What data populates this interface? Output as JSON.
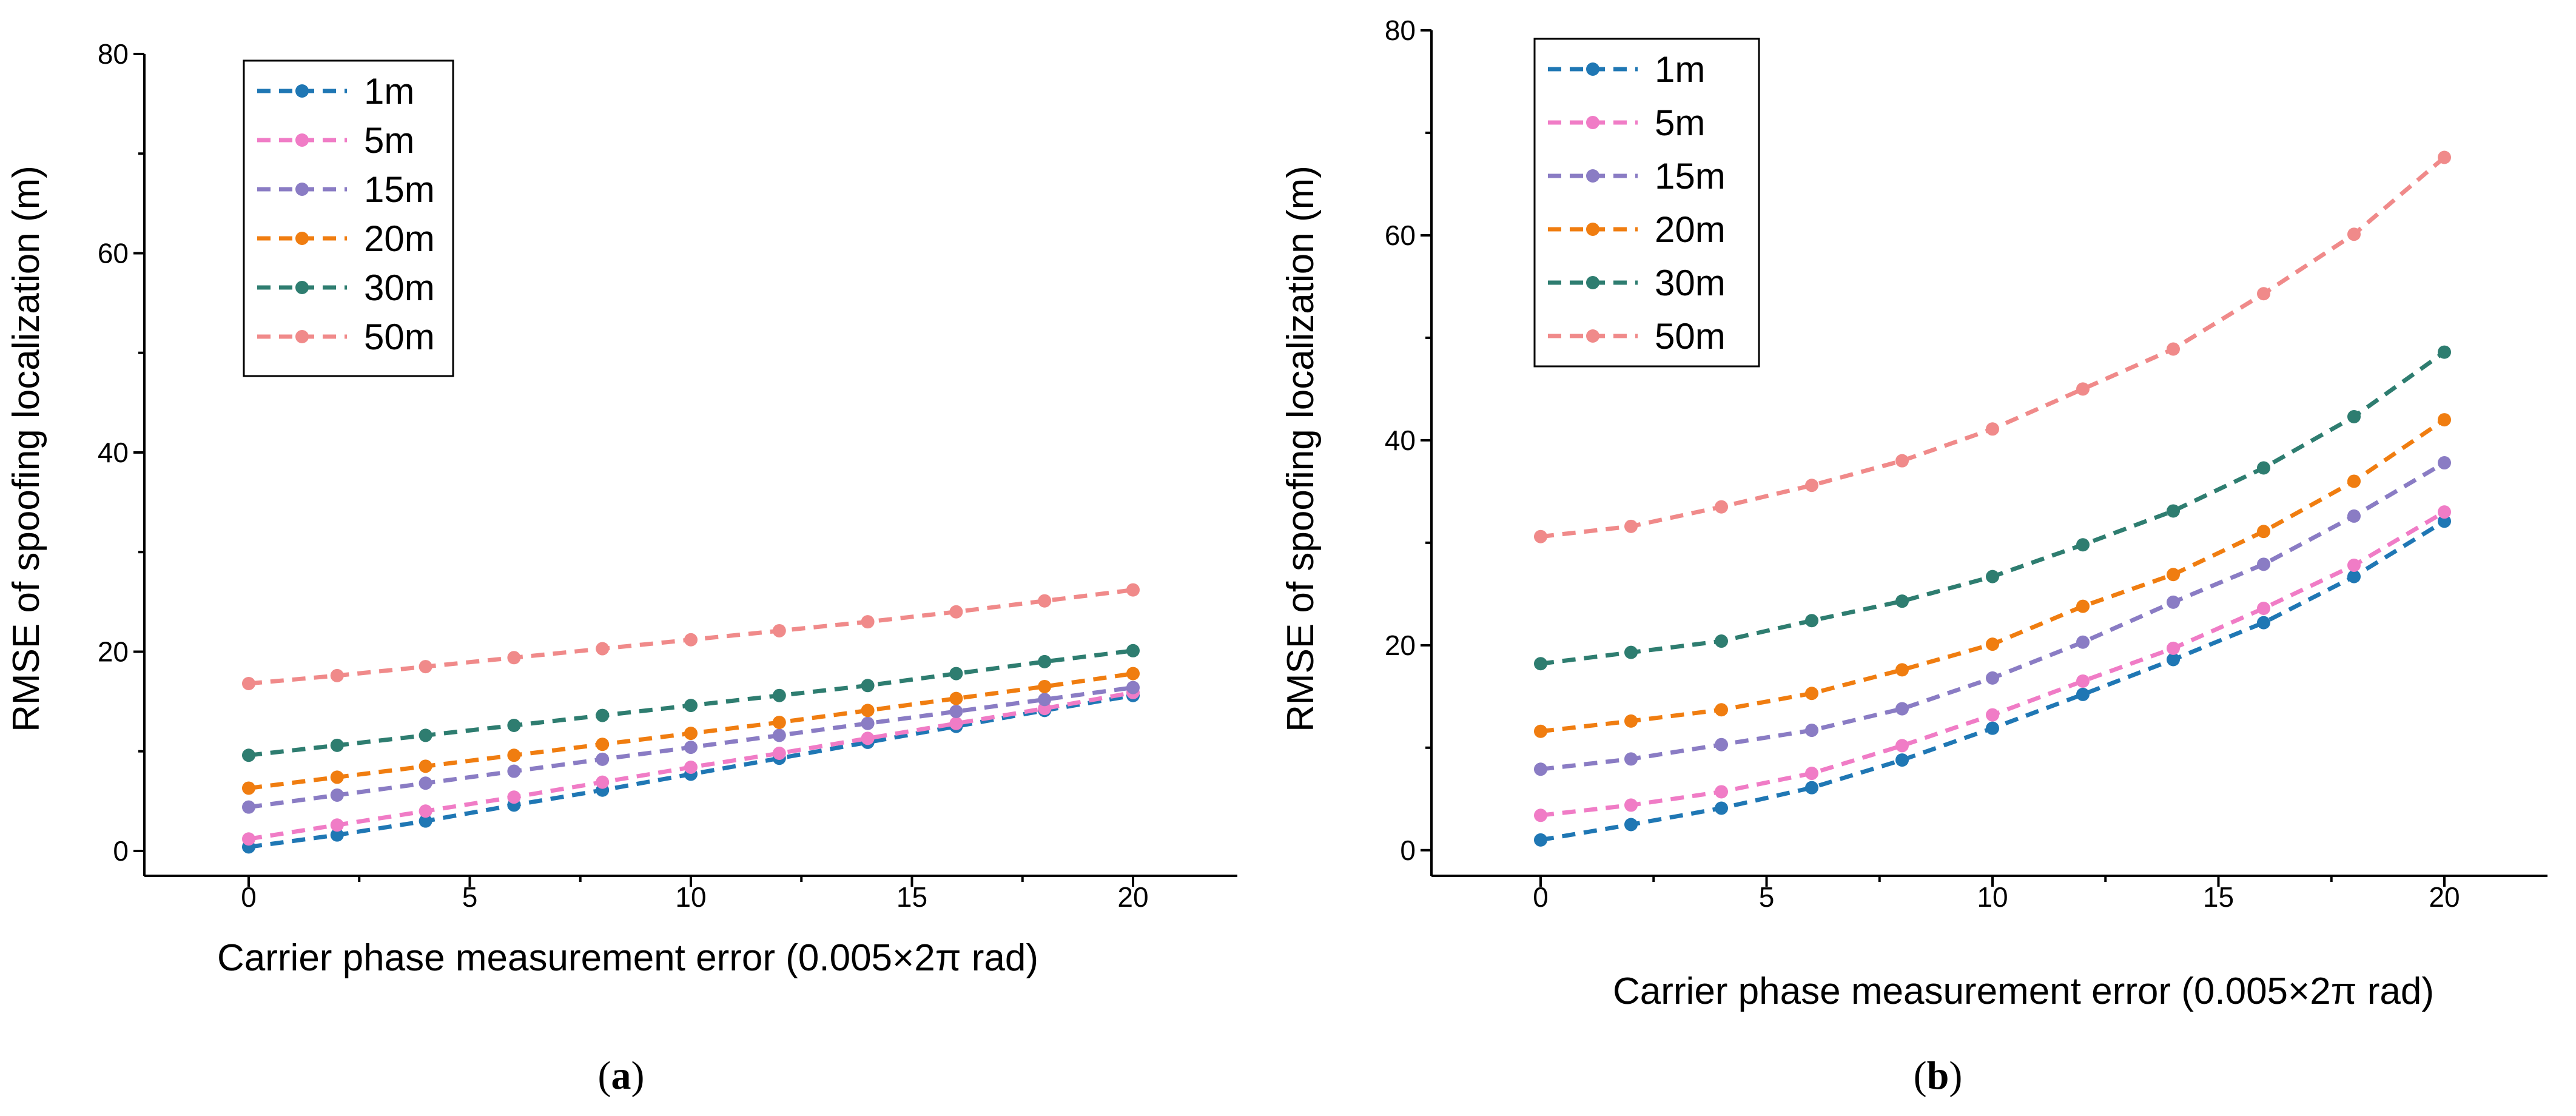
{
  "chart_data": [
    {
      "type": "line",
      "panel_label": "a",
      "title": "",
      "xlabel": "Carrier phase measurement error (0.005×2π rad)",
      "ylabel": "RMSE of spoofing localization (m)",
      "xlim": [
        -2.4,
        22.4
      ],
      "ylim": [
        -2.5,
        80
      ],
      "xticks": [
        0,
        5,
        10,
        15,
        20
      ],
      "yticks": [
        0,
        20,
        40,
        60,
        80
      ],
      "legend_position": "top-left",
      "x": [
        0,
        2,
        4,
        6,
        8,
        10,
        12,
        14,
        16,
        18,
        20
      ],
      "series": [
        {
          "name": "1m",
          "color": "#1f77b4",
          "values": [
            0.4,
            1.6,
            3.0,
            4.6,
            6.1,
            7.7,
            9.3,
            10.9,
            12.5,
            14.1,
            15.6
          ]
        },
        {
          "name": "5m",
          "color": "#f07cc6",
          "values": [
            1.2,
            2.6,
            4.0,
            5.4,
            6.9,
            8.4,
            9.8,
            11.3,
            12.8,
            14.3,
            15.9
          ]
        },
        {
          "name": "15m",
          "color": "#8a7cc4",
          "values": [
            4.4,
            5.6,
            6.8,
            8.0,
            9.2,
            10.4,
            11.6,
            12.8,
            14.0,
            15.2,
            16.4
          ]
        },
        {
          "name": "20m",
          "color": "#f07d10",
          "values": [
            6.3,
            7.4,
            8.5,
            9.6,
            10.7,
            11.8,
            12.9,
            14.1,
            15.3,
            16.5,
            17.8
          ]
        },
        {
          "name": "30m",
          "color": "#2e7d70",
          "values": [
            9.6,
            10.6,
            11.6,
            12.6,
            13.6,
            14.6,
            15.6,
            16.6,
            17.8,
            19.0,
            20.1
          ]
        },
        {
          "name": "50m",
          "color": "#f08a8a",
          "values": [
            16.8,
            17.6,
            18.5,
            19.4,
            20.3,
            21.2,
            22.1,
            23.0,
            24.0,
            25.1,
            26.2
          ]
        }
      ]
    },
    {
      "type": "line",
      "panel_label": "b",
      "title": "",
      "xlabel": "Carrier phase measurement error (0.005×2π rad)",
      "ylabel": "RMSE of spoofing localization (m)",
      "xlim": [
        -2.4,
        22.4
      ],
      "ylim": [
        -2.5,
        80
      ],
      "xticks": [
        0,
        5,
        10,
        15,
        20
      ],
      "yticks": [
        0,
        20,
        40,
        60,
        80
      ],
      "legend_position": "top-left",
      "x": [
        0,
        2,
        4,
        6,
        8,
        10,
        12,
        14,
        16,
        18,
        20
      ],
      "series": [
        {
          "name": "1m",
          "color": "#1f77b4",
          "values": [
            1.0,
            2.5,
            4.1,
            6.1,
            8.8,
            11.9,
            15.2,
            18.6,
            22.2,
            26.7,
            32.1
          ]
        },
        {
          "name": "5m",
          "color": "#f07cc6",
          "values": [
            3.4,
            4.4,
            5.7,
            7.5,
            10.2,
            13.2,
            16.5,
            19.7,
            23.6,
            27.8,
            33.0
          ]
        },
        {
          "name": "15m",
          "color": "#8a7cc4",
          "values": [
            7.9,
            8.9,
            10.3,
            11.7,
            13.8,
            16.8,
            20.3,
            24.2,
            27.9,
            32.6,
            37.8
          ]
        },
        {
          "name": "20m",
          "color": "#f07d10",
          "values": [
            11.6,
            12.6,
            13.7,
            15.3,
            17.6,
            20.1,
            23.8,
            26.9,
            31.1,
            36.0,
            42.0
          ]
        },
        {
          "name": "30m",
          "color": "#2e7d70",
          "values": [
            18.2,
            19.3,
            20.4,
            22.4,
            24.3,
            26.7,
            29.8,
            33.1,
            37.3,
            42.3,
            48.6
          ]
        },
        {
          "name": "50m",
          "color": "#f08a8a",
          "values": [
            30.6,
            31.6,
            33.5,
            35.6,
            38.0,
            41.1,
            45.0,
            48.9,
            54.3,
            60.1,
            67.6
          ]
        }
      ]
    }
  ]
}
